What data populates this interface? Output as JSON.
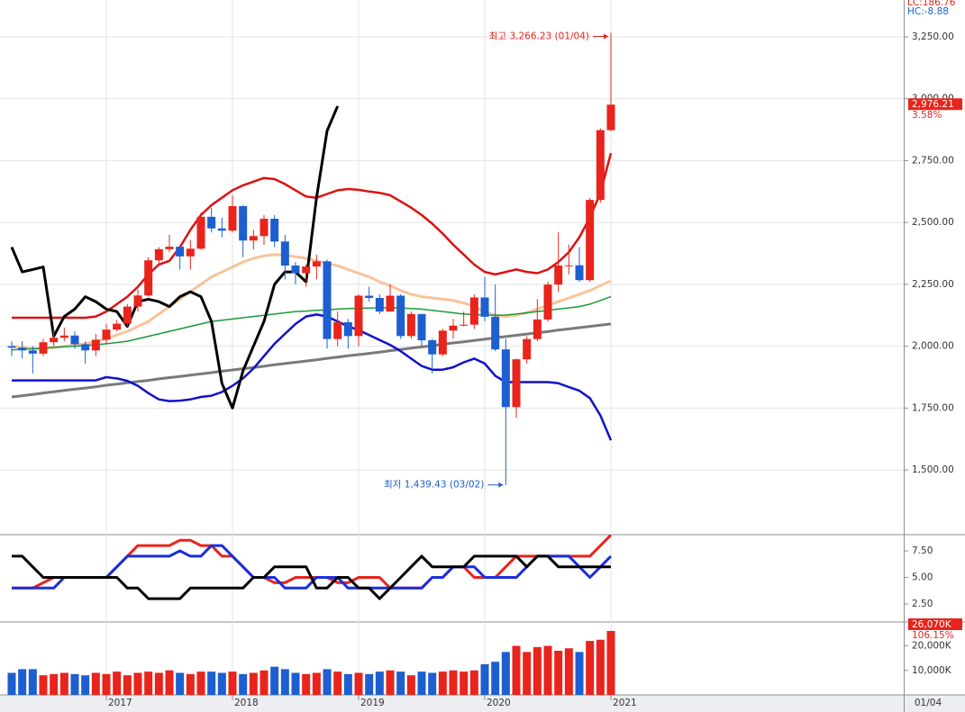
{
  "chart_data": [
    {
      "type": "candlestick",
      "open": [
        2000,
        1994,
        1983,
        1970,
        2016,
        2034,
        2043,
        2008,
        1983,
        2026,
        2067,
        2091,
        2160,
        2205,
        2347,
        2392,
        2402,
        2363,
        2394,
        2523,
        2476,
        2467,
        2566,
        2427,
        2445,
        2515,
        2423,
        2326,
        2295,
        2322,
        2343,
        2029,
        2097,
        2041,
        2204,
        2195,
        2140,
        2204,
        2041,
        2130,
        2024,
        1967,
        2063,
        2083,
        2087,
        2197,
        2119,
        1987,
        1754,
        1947,
        2029,
        2108,
        2249,
        2326,
        2327,
        2267,
        2591,
        2873
      ],
      "high": [
        2020,
        2020,
        2000,
        2030,
        2070,
        2075,
        2060,
        2020,
        2050,
        2090,
        2105,
        2170,
        2230,
        2360,
        2400,
        2450,
        2400,
        2430,
        2540,
        2560,
        2520,
        2610,
        2570,
        2470,
        2530,
        2530,
        2450,
        2340,
        2330,
        2370,
        2350,
        2140,
        2110,
        2210,
        2240,
        2210,
        2250,
        2210,
        2140,
        2130,
        2030,
        2070,
        2110,
        2140,
        2210,
        2280,
        2250,
        2030,
        1950,
        2040,
        2190,
        2260,
        2460,
        2410,
        2400,
        2600,
        2880,
        3266.23
      ],
      "low": [
        1960,
        1950,
        1890,
        1960,
        2000,
        2020,
        1990,
        1930,
        1960,
        2010,
        2060,
        2080,
        2140,
        2200,
        2330,
        2380,
        2310,
        2310,
        2390,
        2460,
        2440,
        2460,
        2360,
        2390,
        2410,
        2400,
        2270,
        2250,
        2240,
        2270,
        1990,
        2000,
        1990,
        2000,
        2180,
        2130,
        2140,
        2030,
        2030,
        2000,
        1890,
        1960,
        2030,
        2080,
        2070,
        2100,
        1980,
        1439.43,
        1710,
        1930,
        2020,
        2100,
        2220,
        2290,
        2260,
        2260,
        2580,
        2870
      ],
      "close": [
        1994,
        1983,
        1970,
        2016,
        2034,
        2043,
        2008,
        1983,
        2026,
        2067,
        2091,
        2160,
        2205,
        2347,
        2392,
        2402,
        2363,
        2394,
        2523,
        2476,
        2467,
        2566,
        2427,
        2445,
        2515,
        2423,
        2326,
        2295,
        2322,
        2343,
        2029,
        2097,
        2041,
        2204,
        2195,
        2140,
        2204,
        2041,
        2130,
        2024,
        1967,
        2063,
        2083,
        2087,
        2197,
        2119,
        1987,
        1754,
        1947,
        2029,
        2108,
        2249,
        2326,
        2327,
        2267,
        2591,
        2873,
        2976.21
      ],
      "up_color": "#e8241c",
      "down_color": "#1d5fd0",
      "lines": [
        {
          "color": "#f7c49a",
          "width": 3,
          "values": [
            2000,
            1995,
            1990,
            1990,
            1995,
            2000,
            2005,
            2010,
            2020,
            2030,
            2045,
            2060,
            2080,
            2100,
            2130,
            2160,
            2190,
            2220,
            2250,
            2280,
            2300,
            2320,
            2340,
            2355,
            2365,
            2370,
            2368,
            2362,
            2355,
            2345,
            2335,
            2325,
            2310,
            2295,
            2280,
            2260,
            2245,
            2225,
            2210,
            2200,
            2195,
            2190,
            2185,
            2175,
            2160,
            2140,
            2125,
            2120,
            2125,
            2135,
            2150,
            2165,
            2180,
            2195,
            2210,
            2225,
            2245,
            2265
          ]
        },
        {
          "color": "#7a7a7a",
          "width": 3,
          "values": [
            1795,
            1800,
            1805,
            1811,
            1816,
            1821,
            1826,
            1831,
            1836,
            1842,
            1847,
            1852,
            1857,
            1862,
            1868,
            1873,
            1878,
            1883,
            1888,
            1893,
            1899,
            1904,
            1909,
            1914,
            1919,
            1925,
            1930,
            1935,
            1940,
            1945,
            1951,
            1956,
            1961,
            1966,
            1971,
            1976,
            1982,
            1987,
            1992,
            1997,
            2002,
            2008,
            2013,
            2018,
            2023,
            2028,
            2034,
            2039,
            2044,
            2049,
            2054,
            2059,
            2065,
            2070,
            2075,
            2080,
            2085,
            2090
          ]
        },
        {
          "color": "#1a9a3a",
          "width": 1.5,
          "values": [
            1985,
            1988,
            1990,
            1992,
            1995,
            1998,
            2000,
            2003,
            2006,
            2010,
            2015,
            2020,
            2030,
            2040,
            2050,
            2060,
            2070,
            2080,
            2090,
            2100,
            2105,
            2110,
            2115,
            2120,
            2125,
            2130,
            2135,
            2140,
            2142,
            2145,
            2147,
            2150,
            2152,
            2153,
            2154,
            2155,
            2155,
            2154,
            2152,
            2150,
            2145,
            2140,
            2135,
            2130,
            2128,
            2126,
            2125,
            2126,
            2130,
            2135,
            2140,
            2145,
            2150,
            2155,
            2160,
            2170,
            2185,
            2200
          ]
        },
        {
          "color": "#dd1111",
          "width": 2.5,
          "values": [
            2115,
            2115,
            2115,
            2115,
            2115,
            2115,
            2115,
            2115,
            2120,
            2140,
            2170,
            2200,
            2240,
            2290,
            2330,
            2345,
            2400,
            2470,
            2530,
            2570,
            2600,
            2630,
            2650,
            2665,
            2680,
            2675,
            2655,
            2630,
            2605,
            2600,
            2615,
            2630,
            2635,
            2632,
            2625,
            2620,
            2610,
            2585,
            2560,
            2530,
            2495,
            2455,
            2410,
            2370,
            2330,
            2300,
            2290,
            2300,
            2310,
            2300,
            2295,
            2310,
            2340,
            2380,
            2440,
            2520,
            2620,
            2780
          ]
        },
        {
          "color": "#1111cc",
          "width": 2.5,
          "values": [
            1862,
            1862,
            1862,
            1862,
            1862,
            1862,
            1862,
            1862,
            1862,
            1875,
            1870,
            1860,
            1840,
            1810,
            1785,
            1778,
            1780,
            1785,
            1795,
            1800,
            1815,
            1840,
            1870,
            1910,
            1960,
            2010,
            2050,
            2090,
            2120,
            2128,
            2120,
            2100,
            2080,
            2065,
            2045,
            2025,
            2005,
            1980,
            1950,
            1920,
            1905,
            1905,
            1915,
            1935,
            1950,
            1930,
            1880,
            1855,
            1855,
            1855,
            1855,
            1855,
            1850,
            1835,
            1820,
            1790,
            1720,
            1620
          ]
        },
        {
          "color": "#000000",
          "width": 3,
          "values": [
            2400,
            2300,
            2310,
            2320,
            2040,
            2120,
            2150,
            2200,
            2180,
            2150,
            2140,
            2080,
            2180,
            2190,
            2180,
            2160,
            2200,
            2220,
            2200,
            2100,
            1850,
            1750,
            1900,
            2000,
            2100,
            2250,
            2300,
            2300,
            2260,
            2600,
            2870,
            2970,
            null,
            null,
            null,
            null,
            null,
            null,
            null,
            null,
            null,
            null,
            null,
            null,
            null,
            null,
            null,
            null,
            null,
            null,
            null,
            null,
            null,
            null,
            null,
            null,
            null,
            null
          ]
        }
      ],
      "ylim": [
        1242,
        3399
      ],
      "yticks": [
        {
          "value": 3250,
          "label": "3,250.00"
        },
        {
          "value": 3000,
          "label": "3,000.00"
        },
        {
          "value": 2750,
          "label": "2,750.00"
        },
        {
          "value": 2500,
          "label": "2,500.00"
        },
        {
          "value": 2250,
          "label": "2,250.00"
        },
        {
          "value": 2000,
          "label": "2,000.00"
        },
        {
          "value": 1750,
          "label": "1,750.00"
        },
        {
          "value": 1500,
          "label": "1,500.00"
        }
      ],
      "grid": true,
      "annotations": [
        {
          "text": "최고 3,266.23 (01/04)",
          "value": 3266.23
        },
        {
          "text": "최저 1,439.43 (03/02)",
          "value": 1439.43
        }
      ],
      "last_label": "2,976.21",
      "change_label": "3.58%",
      "corner_labels": [
        "LC:186.76",
        "HC:-8.88"
      ]
    },
    {
      "type": "line",
      "series": [
        {
          "color": "#e8241c",
          "values": [
            4,
            4,
            4,
            4.5,
            5,
            5,
            5,
            5,
            5,
            5,
            6,
            7,
            8,
            8,
            8,
            8,
            8.5,
            8.5,
            8,
            8,
            7,
            7,
            6,
            5,
            5,
            4.5,
            4.5,
            5,
            5,
            5,
            5,
            4.5,
            4.5,
            5,
            5,
            5,
            4,
            4,
            4,
            4,
            5,
            5,
            6,
            6,
            5,
            5,
            5,
            6,
            7,
            7,
            7,
            7,
            7,
            7,
            7,
            7,
            8,
            9
          ]
        },
        {
          "color": "#1a2ee0",
          "values": [
            4,
            4,
            4,
            4,
            4,
            5,
            5,
            5,
            5,
            5,
            6,
            7,
            7,
            7,
            7,
            7,
            7.5,
            7,
            7,
            8,
            8,
            7,
            6,
            5,
            5,
            5,
            4,
            4,
            4,
            5,
            5,
            5,
            4,
            4,
            4,
            4,
            4,
            4,
            4,
            4,
            5,
            5,
            6,
            6,
            6,
            5,
            5,
            5,
            5,
            6,
            7,
            7,
            7,
            7,
            6,
            5,
            6,
            7
          ]
        },
        {
          "color": "#000000",
          "values": [
            7,
            7,
            6,
            5,
            5,
            5,
            5,
            5,
            5,
            5,
            5,
            4,
            4,
            3,
            3,
            3,
            3,
            4,
            4,
            4,
            4,
            4,
            4,
            5,
            5,
            6,
            6,
            6,
            6,
            4,
            4,
            5,
            5,
            4,
            4,
            3,
            4,
            5,
            6,
            7,
            6,
            6,
            6,
            6,
            7,
            7,
            7,
            7,
            7,
            6,
            7,
            7,
            6,
            6,
            6,
            6,
            6,
            6
          ]
        }
      ],
      "ylim": [
        0.89,
        8.77
      ],
      "yticks": [
        {
          "value": 7.5,
          "label": "7.50"
        },
        {
          "value": 5,
          "label": "5.00"
        },
        {
          "value": 2.5,
          "label": "2.50"
        }
      ]
    },
    {
      "type": "bar",
      "categories": [
        null,
        null,
        null,
        null,
        null,
        null,
        null,
        null,
        null,
        "2017",
        null,
        null,
        null,
        null,
        null,
        null,
        null,
        null,
        null,
        null,
        null,
        "2018",
        null,
        null,
        null,
        null,
        null,
        null,
        null,
        null,
        null,
        null,
        null,
        "2019",
        null,
        null,
        null,
        null,
        null,
        null,
        null,
        null,
        null,
        null,
        null,
        "2020",
        null,
        null,
        null,
        null,
        null,
        null,
        null,
        null,
        null,
        null,
        null,
        "2021"
      ],
      "values": [
        9000,
        10500,
        10500,
        8000,
        8500,
        9000,
        8500,
        8000,
        9000,
        8500,
        9500,
        8000,
        9000,
        9500,
        9000,
        10000,
        9000,
        8500,
        9500,
        9500,
        9000,
        9500,
        8500,
        9000,
        10000,
        11500,
        10500,
        9000,
        8500,
        9000,
        10500,
        9500,
        8500,
        9000,
        8500,
        9500,
        10000,
        9500,
        8000,
        9500,
        9000,
        9500,
        10000,
        9500,
        10000,
        12500,
        13500,
        17500,
        20000,
        17500,
        19500,
        20000,
        18000,
        19000,
        17500,
        22000,
        22500,
        26070
      ],
      "ylim": [
        0,
        29000
      ],
      "yticks": [
        {
          "value": 20000,
          "label": "20,000K"
        },
        {
          "value": 10000,
          "label": "10,000K"
        }
      ],
      "last_label": "26,070K",
      "change_label": "106.15%",
      "date_label": "01/04"
    }
  ]
}
